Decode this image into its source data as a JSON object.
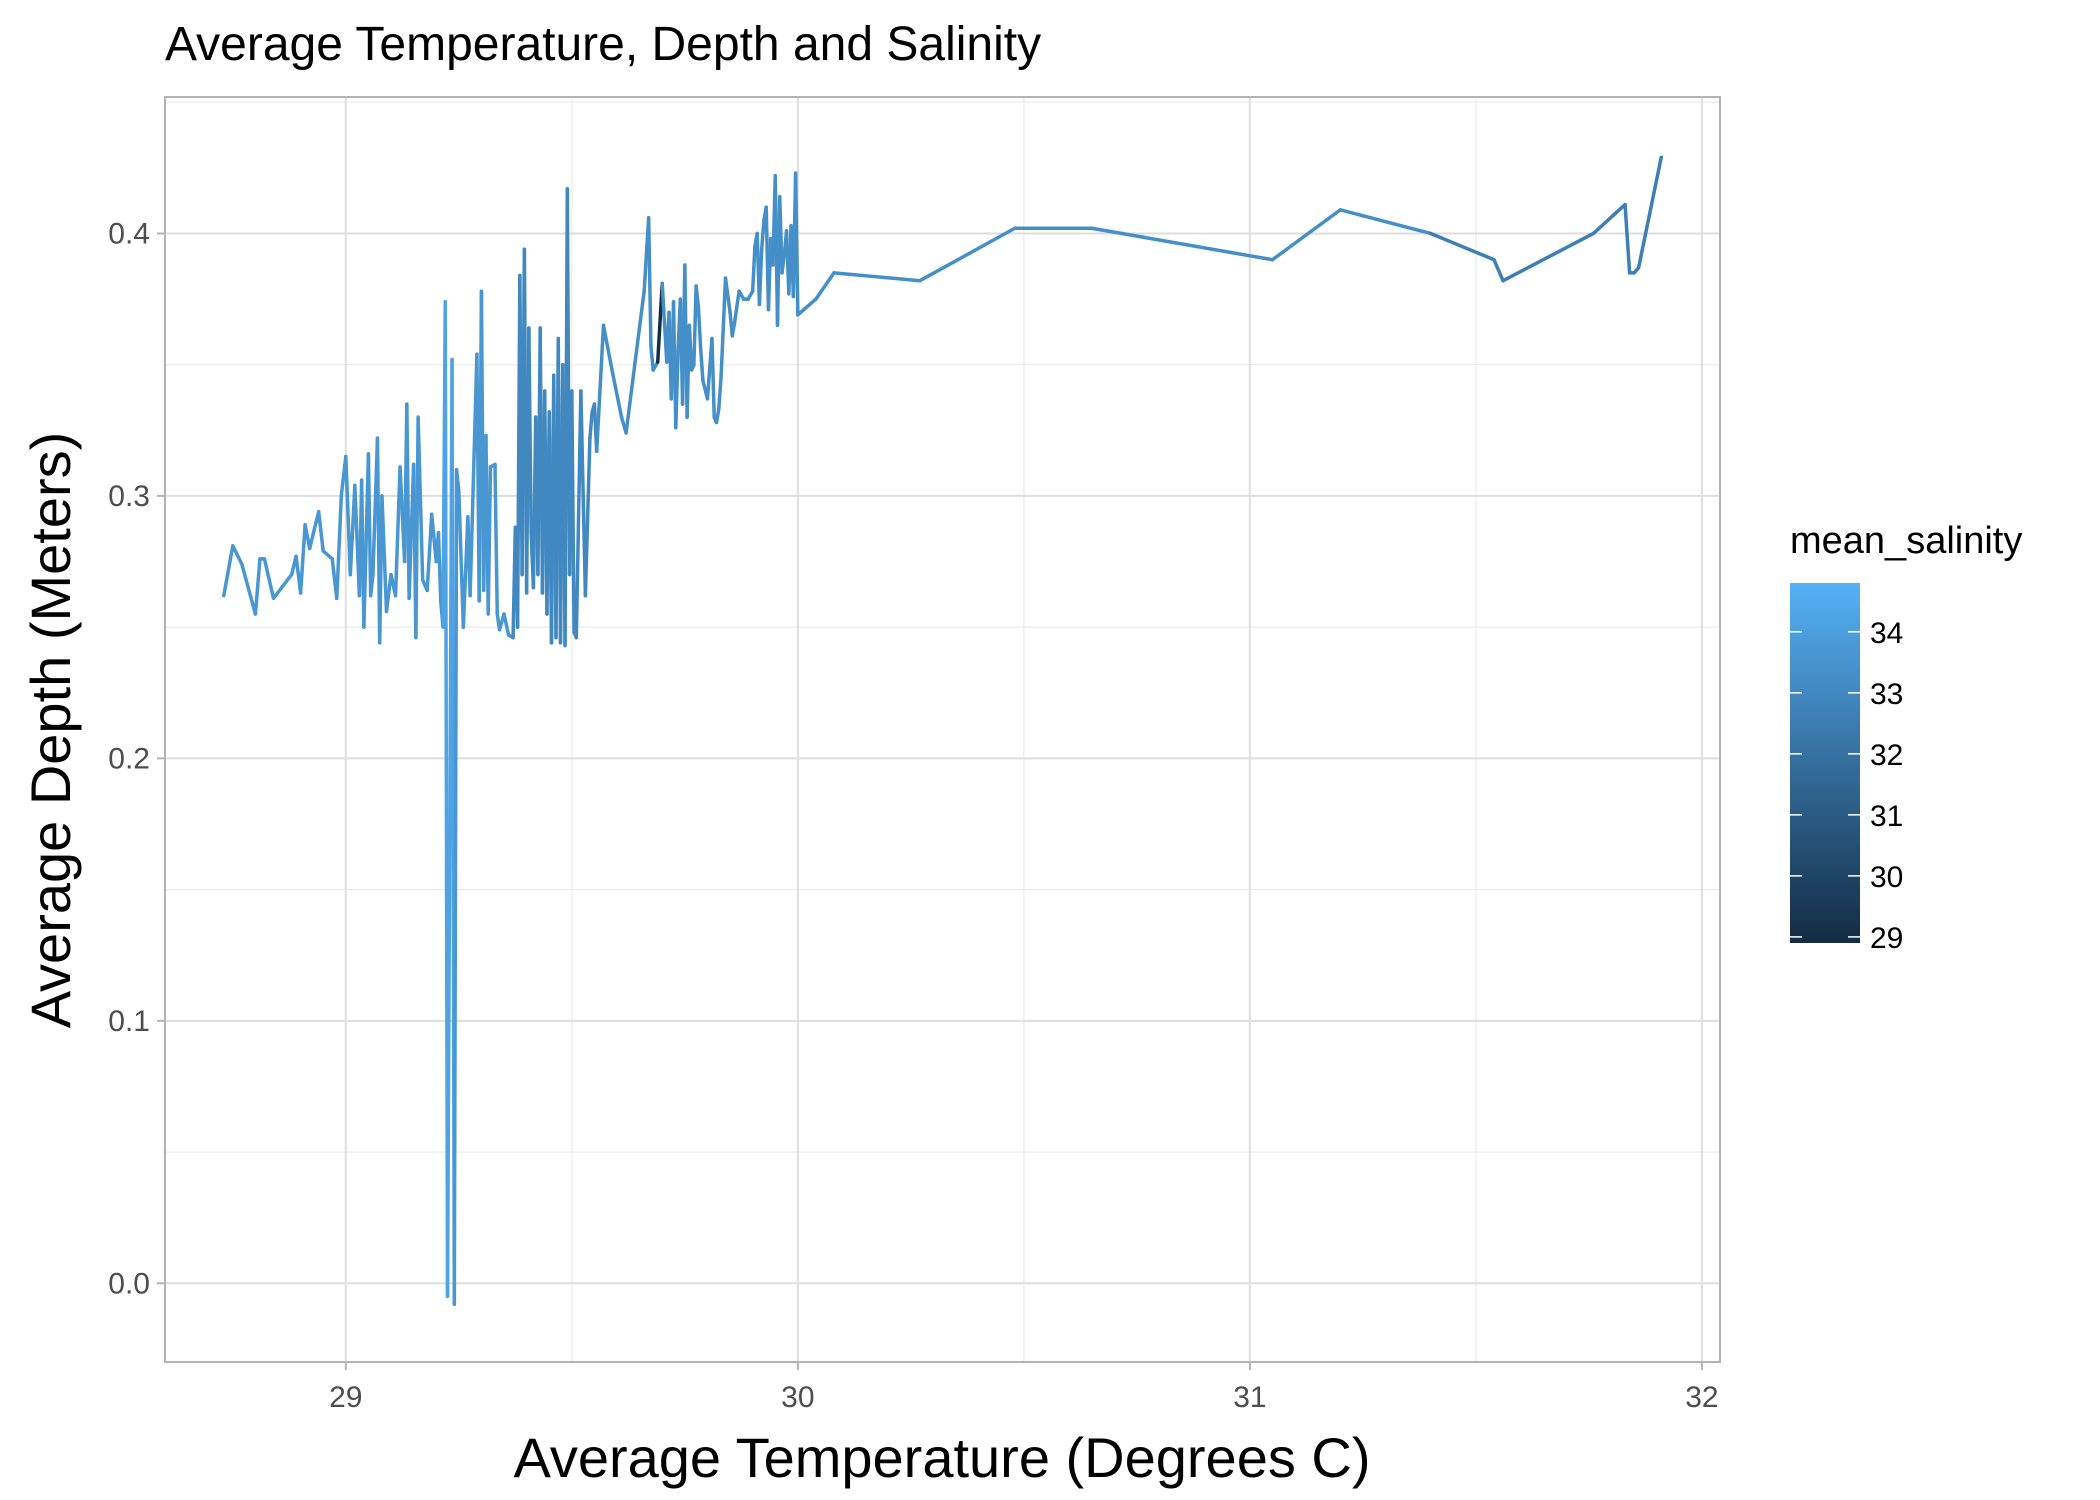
{
  "chart_data": {
    "type": "line",
    "title": "Average Temperature, Depth and Salinity",
    "xlabel": "Average Temperature (Degrees C)",
    "ylabel": "Average Depth (Meters)",
    "xlim": [
      28.6,
      32.04
    ],
    "ylim": [
      -0.03,
      0.452
    ],
    "x_ticks": [
      29,
      30,
      31,
      32
    ],
    "x_tick_labels": [
      "29",
      "30",
      "31",
      "32"
    ],
    "y_ticks": [
      0.0,
      0.1,
      0.2,
      0.3,
      0.4
    ],
    "y_tick_labels": [
      "0.0",
      "0.1",
      "0.2",
      "0.3",
      "0.4"
    ],
    "grid": true,
    "legend": {
      "title": "mean_salinity",
      "position": "right",
      "type": "colorbar",
      "min": 28.9,
      "max": 34.8,
      "ticks": [
        29,
        30,
        31,
        32,
        33,
        34
      ],
      "tick_labels": [
        "29",
        "30",
        "31",
        "32",
        "33",
        "34"
      ],
      "low_color": "#132B43",
      "high_color": "#56B1F7"
    },
    "series": [
      {
        "points": [
          [
            28.73,
            0.262,
            33.6
          ],
          [
            28.75,
            0.281,
            33.6
          ],
          [
            28.77,
            0.274,
            33.6
          ],
          [
            28.8,
            0.255,
            33.6
          ],
          [
            28.81,
            0.276,
            33.6
          ],
          [
            28.82,
            0.276,
            33.6
          ],
          [
            28.84,
            0.261,
            33.6
          ],
          [
            28.88,
            0.27,
            33.6
          ],
          [
            28.89,
            0.277,
            33.6
          ],
          [
            28.9,
            0.263,
            33.6
          ],
          [
            28.91,
            0.289,
            33.6
          ],
          [
            28.92,
            0.28,
            33.6
          ],
          [
            28.94,
            0.294,
            33.6
          ],
          [
            28.95,
            0.279,
            33.6
          ],
          [
            28.97,
            0.276,
            33.6
          ],
          [
            28.98,
            0.261,
            33.6
          ],
          [
            28.99,
            0.3,
            33.6
          ],
          [
            29.0,
            0.315,
            33.6
          ],
          [
            29.01,
            0.27,
            33.6
          ],
          [
            29.02,
            0.304,
            33.6
          ],
          [
            29.03,
            0.262,
            33.6
          ],
          [
            29.035,
            0.306,
            33.6
          ],
          [
            29.04,
            0.25,
            33.6
          ],
          [
            29.05,
            0.316,
            33.6
          ],
          [
            29.055,
            0.262,
            33.6
          ],
          [
            29.06,
            0.27,
            33.6
          ],
          [
            29.07,
            0.322,
            33.6
          ],
          [
            29.075,
            0.244,
            33.6
          ],
          [
            29.08,
            0.3,
            33.6
          ],
          [
            29.09,
            0.256,
            33.6
          ],
          [
            29.1,
            0.27,
            33.6
          ],
          [
            29.11,
            0.262,
            33.6
          ],
          [
            29.12,
            0.311,
            33.6
          ],
          [
            29.13,
            0.275,
            33.6
          ],
          [
            29.135,
            0.335,
            33.6
          ],
          [
            29.14,
            0.261,
            33.6
          ],
          [
            29.15,
            0.312,
            33.6
          ],
          [
            29.155,
            0.246,
            33.6
          ],
          [
            29.16,
            0.33,
            33.6
          ],
          [
            29.17,
            0.268,
            33.6
          ],
          [
            29.18,
            0.264,
            33.6
          ],
          [
            29.19,
            0.293,
            33.6
          ],
          [
            29.2,
            0.275,
            33.6
          ],
          [
            29.205,
            0.286,
            33.6
          ],
          [
            29.21,
            0.26,
            33.6
          ],
          [
            29.215,
            0.25,
            33.6
          ],
          [
            29.22,
            0.374,
            34.2
          ],
          [
            29.225,
            -0.005,
            34.2
          ],
          [
            29.235,
            0.352,
            34.2
          ],
          [
            29.24,
            -0.008,
            34.2
          ],
          [
            29.245,
            0.31,
            33.6
          ],
          [
            29.25,
            0.302,
            33.6
          ],
          [
            29.26,
            0.25,
            33.6
          ],
          [
            29.27,
            0.292,
            33.6
          ],
          [
            29.275,
            0.262,
            33.6
          ],
          [
            29.29,
            0.354,
            33.6
          ],
          [
            29.295,
            0.26,
            33.6
          ],
          [
            29.3,
            0.378,
            33.6
          ],
          [
            29.305,
            0.264,
            33.6
          ],
          [
            29.31,
            0.323,
            33.6
          ],
          [
            29.315,
            0.255,
            33.6
          ],
          [
            29.32,
            0.311,
            33.6
          ],
          [
            29.33,
            0.312,
            33.6
          ],
          [
            29.335,
            0.255,
            33.6
          ],
          [
            29.34,
            0.249,
            33.6
          ],
          [
            29.35,
            0.255,
            33.6
          ],
          [
            29.36,
            0.247,
            33.6
          ],
          [
            29.37,
            0.246,
            33.6
          ],
          [
            29.375,
            0.288,
            33.0
          ],
          [
            29.38,
            0.25,
            33.0
          ],
          [
            29.385,
            0.384,
            33.0
          ],
          [
            29.39,
            0.27,
            33.0
          ],
          [
            29.395,
            0.394,
            33.0
          ],
          [
            29.4,
            0.263,
            33.0
          ],
          [
            29.405,
            0.364,
            33.0
          ],
          [
            29.41,
            0.286,
            33.0
          ],
          [
            29.415,
            0.265,
            33.0
          ],
          [
            29.42,
            0.33,
            33.0
          ],
          [
            29.425,
            0.27,
            33.0
          ],
          [
            29.43,
            0.364,
            33.0
          ],
          [
            29.435,
            0.263,
            33.0
          ],
          [
            29.44,
            0.34,
            33.0
          ],
          [
            29.445,
            0.255,
            33.0
          ],
          [
            29.45,
            0.332,
            33.0
          ],
          [
            29.455,
            0.244,
            33.0
          ],
          [
            29.46,
            0.346,
            33.0
          ],
          [
            29.465,
            0.246,
            33.0
          ],
          [
            29.47,
            0.36,
            33.0
          ],
          [
            29.475,
            0.244,
            33.0
          ],
          [
            29.48,
            0.35,
            33.0
          ],
          [
            29.485,
            0.243,
            33.0
          ],
          [
            29.49,
            0.417,
            33.0
          ],
          [
            29.495,
            0.27,
            33.0
          ],
          [
            29.5,
            0.34,
            33.0
          ],
          [
            29.505,
            0.248,
            33.0
          ],
          [
            29.51,
            0.246,
            33.0
          ],
          [
            29.52,
            0.34,
            33.0
          ],
          [
            29.53,
            0.262,
            33.0
          ],
          [
            29.54,
            0.322,
            33.0
          ],
          [
            29.545,
            0.332,
            33.0
          ],
          [
            29.55,
            0.335,
            33.0
          ],
          [
            29.555,
            0.317,
            33.0
          ],
          [
            29.57,
            0.365,
            33.3
          ],
          [
            29.59,
            0.347,
            33.3
          ],
          [
            29.61,
            0.33,
            33.3
          ],
          [
            29.62,
            0.324,
            33.3
          ],
          [
            29.66,
            0.378,
            33.3
          ],
          [
            29.67,
            0.406,
            33.3
          ],
          [
            29.675,
            0.357,
            33.3
          ],
          [
            29.68,
            0.348,
            33.3
          ],
          [
            29.69,
            0.351,
            33.3
          ],
          [
            29.7,
            0.381,
            29.0
          ],
          [
            29.71,
            0.351,
            33.3
          ],
          [
            29.715,
            0.37,
            33.3
          ],
          [
            29.72,
            0.337,
            33.3
          ],
          [
            29.725,
            0.374,
            33.3
          ],
          [
            29.73,
            0.326,
            33.3
          ],
          [
            29.735,
            0.355,
            33.3
          ],
          [
            29.74,
            0.375,
            33.3
          ],
          [
            29.745,
            0.335,
            33.3
          ],
          [
            29.75,
            0.388,
            33.3
          ],
          [
            29.755,
            0.33,
            33.3
          ],
          [
            29.76,
            0.365,
            33.3
          ],
          [
            29.765,
            0.348,
            33.3
          ],
          [
            29.77,
            0.35,
            33.3
          ],
          [
            29.775,
            0.38,
            33.3
          ],
          [
            29.78,
            0.372,
            33.3
          ],
          [
            29.785,
            0.356,
            33.3
          ],
          [
            29.79,
            0.344,
            33.3
          ],
          [
            29.8,
            0.337,
            33.3
          ],
          [
            29.81,
            0.36,
            33.3
          ],
          [
            29.815,
            0.33,
            33.3
          ],
          [
            29.82,
            0.328,
            33.3
          ],
          [
            29.825,
            0.333,
            33.3
          ],
          [
            29.83,
            0.345,
            33.3
          ],
          [
            29.84,
            0.383,
            33.3
          ],
          [
            29.85,
            0.37,
            33.3
          ],
          [
            29.855,
            0.361,
            33.3
          ],
          [
            29.86,
            0.366,
            33.3
          ],
          [
            29.87,
            0.378,
            33.3
          ],
          [
            29.88,
            0.375,
            33.3
          ],
          [
            29.89,
            0.375,
            33.3
          ],
          [
            29.9,
            0.378,
            33.3
          ],
          [
            29.905,
            0.395,
            33.3
          ],
          [
            29.91,
            0.4,
            33.3
          ],
          [
            29.915,
            0.373,
            33.3
          ],
          [
            29.92,
            0.394,
            33.3
          ],
          [
            29.925,
            0.405,
            33.3
          ],
          [
            29.93,
            0.41,
            33.3
          ],
          [
            29.935,
            0.371,
            33.3
          ],
          [
            29.94,
            0.398,
            33.3
          ],
          [
            29.945,
            0.388,
            33.3
          ],
          [
            29.95,
            0.422,
            33.3
          ],
          [
            29.955,
            0.365,
            33.3
          ],
          [
            29.96,
            0.414,
            33.3
          ],
          [
            29.965,
            0.385,
            33.3
          ],
          [
            29.97,
            0.392,
            33.3
          ],
          [
            29.975,
            0.401,
            33.3
          ],
          [
            29.98,
            0.377,
            33.3
          ],
          [
            29.985,
            0.403,
            33.3
          ],
          [
            29.99,
            0.376,
            33.3
          ],
          [
            29.995,
            0.423,
            33.3
          ],
          [
            30.0,
            0.369,
            33.3
          ],
          [
            30.02,
            0.372,
            33.3
          ],
          [
            30.04,
            0.375,
            33.3
          ],
          [
            30.08,
            0.385,
            33.3
          ],
          [
            30.27,
            0.382,
            33.3
          ],
          [
            30.48,
            0.402,
            33.3
          ],
          [
            30.65,
            0.402,
            33.3
          ],
          [
            31.05,
            0.39,
            33.3
          ],
          [
            31.2,
            0.409,
            33.3
          ],
          [
            31.4,
            0.4,
            33.3
          ],
          [
            31.54,
            0.39,
            32.6
          ],
          [
            31.56,
            0.382,
            32.6
          ],
          [
            31.76,
            0.4,
            32.6
          ],
          [
            31.83,
            0.411,
            32.6
          ],
          [
            31.84,
            0.385,
            32.6
          ],
          [
            31.85,
            0.385,
            32.6
          ],
          [
            31.86,
            0.387,
            32.6
          ],
          [
            31.91,
            0.429,
            32.6
          ]
        ]
      }
    ]
  }
}
